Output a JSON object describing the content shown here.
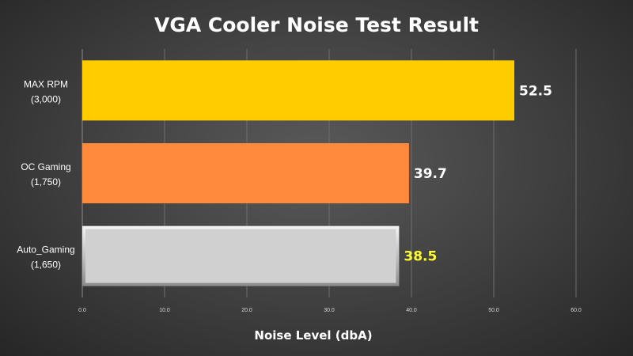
{
  "chart_data": {
    "type": "bar",
    "orientation": "horizontal",
    "title": "VGA Cooler Noise Test Result",
    "xlabel": "Noise Level (dbA)",
    "ylabel": "",
    "xlim": [
      0,
      60
    ],
    "ticks": [
      "0.0",
      "10.0",
      "20.0",
      "30.0",
      "40.0",
      "50.0",
      "60.0"
    ],
    "grid": true,
    "legend": "none",
    "categories": [
      [
        "MAX RPM",
        "(3,000)"
      ],
      [
        "OC Gaming",
        "(1,750)"
      ],
      [
        "Auto_Gaming",
        "(1,650)"
      ]
    ],
    "values": [
      52.5,
      39.7,
      38.5
    ],
    "value_labels": [
      "52.5",
      "39.7",
      "38.5"
    ],
    "bar_colors": [
      "#ffcc00",
      "#ff8a3c",
      "#d0d0d0"
    ],
    "value_label_colors": [
      "#ffffff",
      "#ffffff",
      "#ffff33"
    ]
  }
}
